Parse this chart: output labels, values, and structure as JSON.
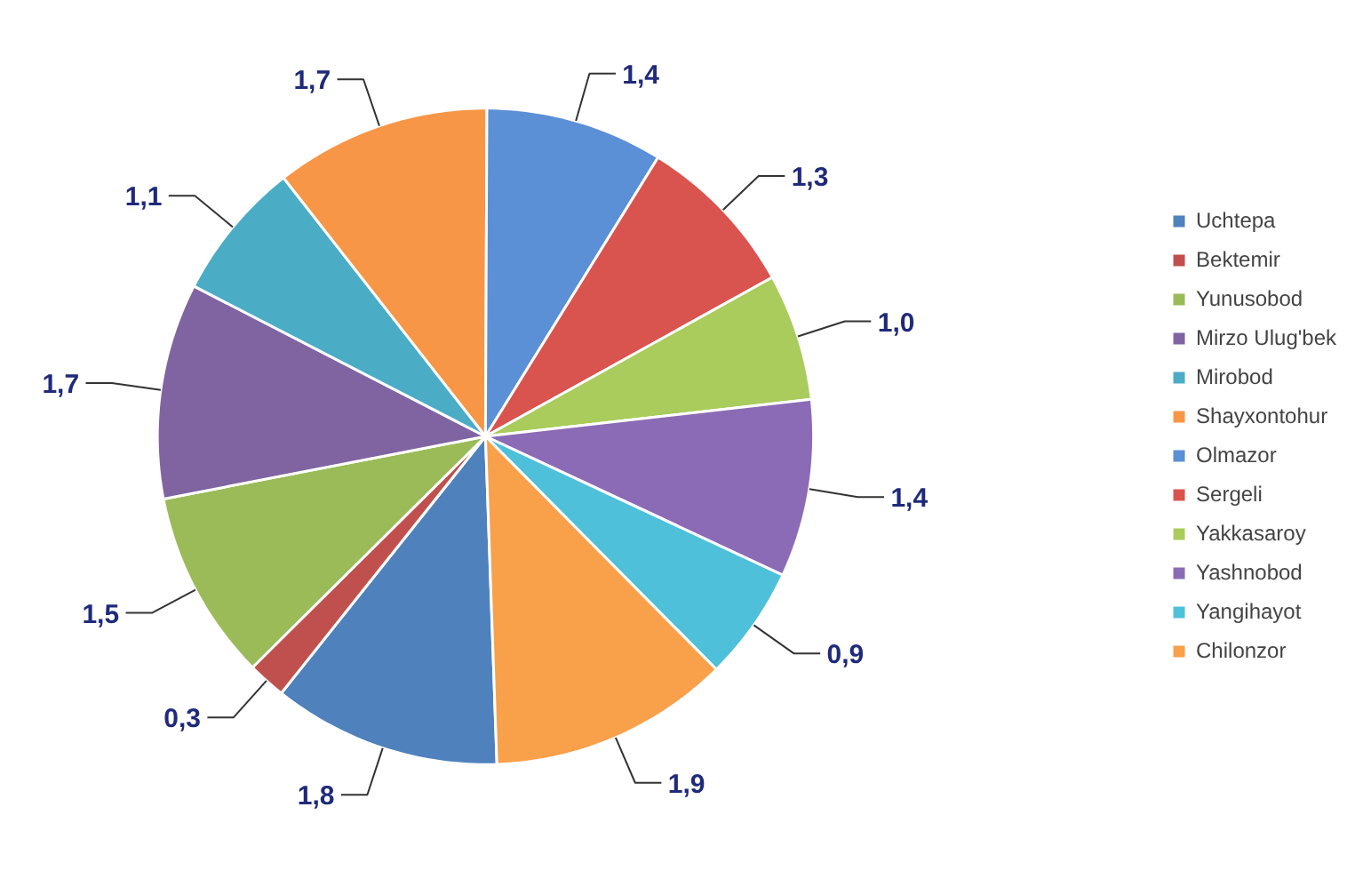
{
  "chart_data": {
    "type": "pie",
    "categories": [
      "Uchtepa",
      "Bektemir",
      "Yunusobod",
      "Mirzo Ulug'bek",
      "Mirobod",
      "Shayxontohur",
      "Olmazor",
      "Sergeli",
      "Yakkasaroy",
      "Yashnobod",
      "Yangihayot",
      "Chilonzor"
    ],
    "values": [
      1.8,
      0.3,
      1.5,
      1.7,
      1.1,
      1.7,
      1.4,
      1.3,
      1.0,
      1.4,
      0.9,
      1.9
    ],
    "value_labels": [
      "1,8",
      "0,3",
      "1,5",
      "1,7",
      "1,1",
      "1,7",
      "1,4",
      "1,3",
      "1,0",
      "1,4",
      "0,9",
      "1,9"
    ],
    "colors": [
      "#4f81bd",
      "#c0504d",
      "#9bbb59",
      "#8064a2",
      "#4bacc6",
      "#f79646",
      "#5b8fd6",
      "#d9534f",
      "#a9cc5c",
      "#8c6bb6",
      "#4ec0da",
      "#f9a04a"
    ],
    "legend": "right"
  }
}
